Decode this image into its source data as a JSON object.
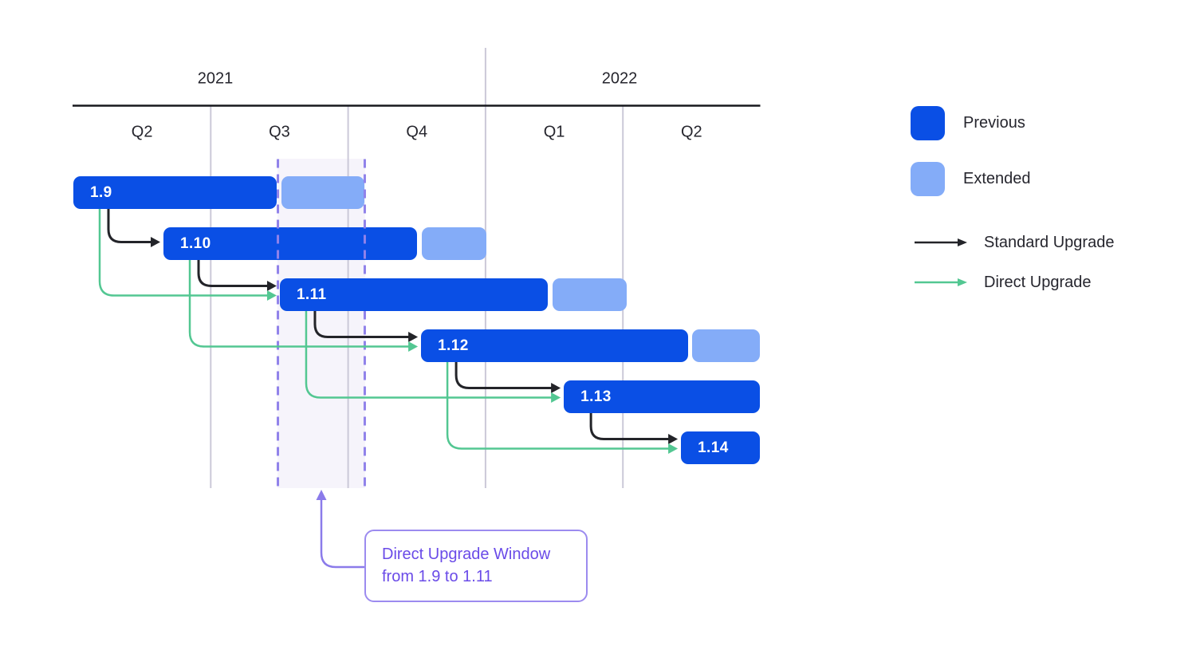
{
  "axis": {
    "years": [
      {
        "label": "2021",
        "quarters": [
          "Q2",
          "Q3",
          "Q4"
        ]
      },
      {
        "label": "2022",
        "quarters": [
          "Q1",
          "Q2"
        ]
      }
    ]
  },
  "releases": [
    {
      "version": "1.9",
      "previous": [
        0.0,
        1.48
      ],
      "extended": [
        1.515,
        2.119
      ]
    },
    {
      "version": "1.10",
      "previous": [
        0.656,
        2.502
      ],
      "extended": [
        2.539,
        3.007
      ]
    },
    {
      "version": "1.11",
      "previous": [
        1.503,
        3.453
      ],
      "extended": [
        3.488,
        4.028
      ]
    },
    {
      "version": "1.12",
      "previous": [
        2.531,
        4.475
      ],
      "extended": [
        4.504,
        5.0
      ]
    },
    {
      "version": "1.13",
      "previous": [
        3.57,
        5.0
      ],
      "extended": null
    },
    {
      "version": "1.14",
      "previous": [
        4.423,
        5.0
      ],
      "extended": null
    }
  ],
  "upgrades": [
    {
      "from": "1.9",
      "to": "1.10",
      "type": "standard"
    },
    {
      "from": "1.10",
      "to": "1.11",
      "type": "standard"
    },
    {
      "from": "1.11",
      "to": "1.12",
      "type": "standard"
    },
    {
      "from": "1.12",
      "to": "1.13",
      "type": "standard"
    },
    {
      "from": "1.13",
      "to": "1.14",
      "type": "standard"
    },
    {
      "from": "1.9",
      "to": "1.11",
      "type": "direct"
    },
    {
      "from": "1.10",
      "to": "1.12",
      "type": "direct"
    },
    {
      "from": "1.11",
      "to": "1.13",
      "type": "direct"
    },
    {
      "from": "1.12",
      "to": "1.14",
      "type": "direct"
    }
  ],
  "highlight_window": {
    "from_q": 1.486,
    "to_q": 2.124
  },
  "annotation": {
    "line1": "Direct Upgrade Window",
    "line2": "from 1.9 to 1.11"
  },
  "legend": {
    "previous_label": "Previous",
    "extended_label": "Extended",
    "standard_label": "Standard Upgrade",
    "direct_label": "Direct Upgrade"
  },
  "colors": {
    "previous": "#0A4FE5",
    "extended": "#84ACF8",
    "standard_arrow": "#232429",
    "direct_arrow": "#53C792",
    "grid_line": "#CBC9D8",
    "axis_line": "#17181D",
    "label_text": "#26262E",
    "bar_label_text": "#FFFFFF",
    "window_fill": "#F6F4FB",
    "window_dash": "#9082EA",
    "annotation_text": "#6A4BE8",
    "annotation_border": "#9C8BEF",
    "annotation_arrow": "#8B7BEA"
  }
}
